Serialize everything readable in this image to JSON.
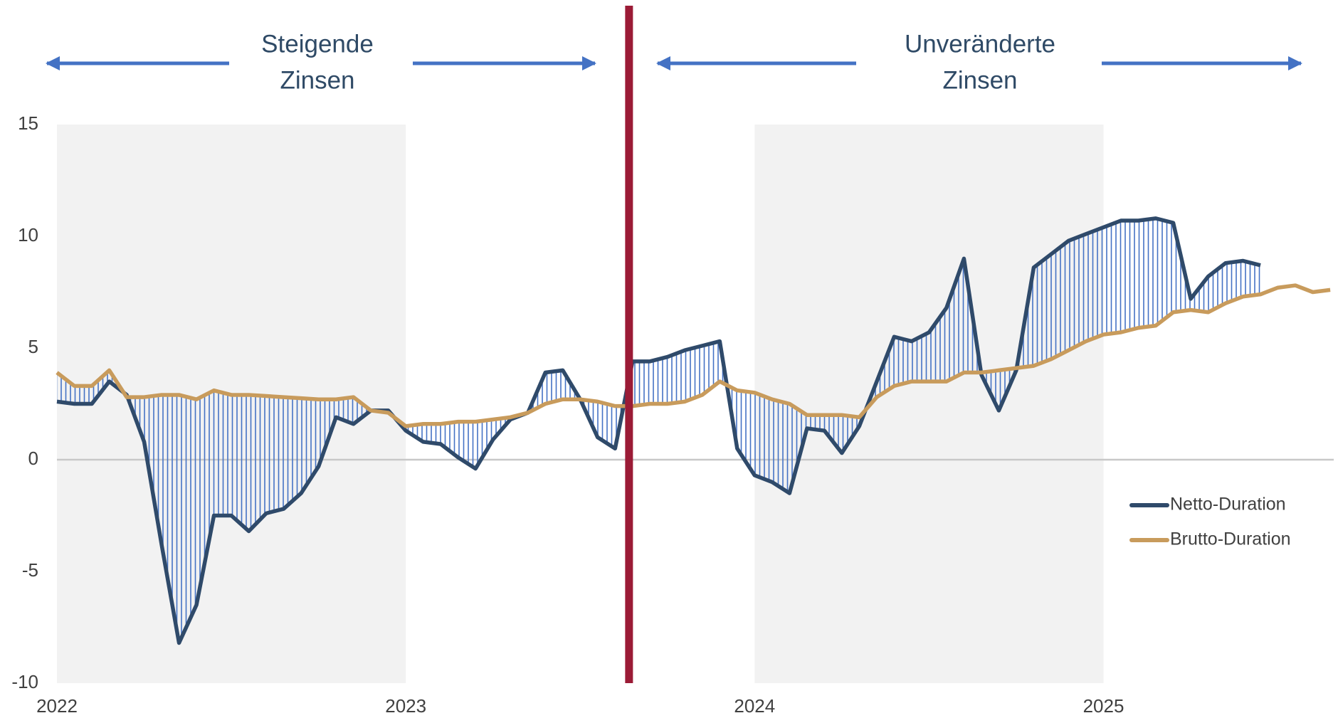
{
  "chart_data": {
    "type": "line",
    "annotations": [
      {
        "text": [
          "Steigende",
          "Zinsen"
        ]
      },
      {
        "text": [
          "Unveränderte",
          "Zinsen"
        ]
      }
    ],
    "x": [
      2022.0,
      2022.05,
      2022.1,
      2022.15,
      2022.2,
      2022.25,
      2022.3,
      2022.35,
      2022.4,
      2022.45,
      2022.5,
      2022.55,
      2022.6,
      2022.65,
      2022.7,
      2022.75,
      2022.8,
      2022.85,
      2022.9,
      2022.95,
      2023.0,
      2023.05,
      2023.1,
      2023.15,
      2023.2,
      2023.25,
      2023.3,
      2023.35,
      2023.4,
      2023.45,
      2023.5,
      2023.55,
      2023.6,
      2023.65,
      2023.7,
      2023.75,
      2023.8,
      2023.85,
      2023.9,
      2023.95,
      2024.0,
      2024.05,
      2024.1,
      2024.15,
      2024.2,
      2024.25,
      2024.3,
      2024.35,
      2024.4,
      2024.45,
      2024.5,
      2024.55,
      2024.6,
      2024.65,
      2024.7,
      2024.75,
      2024.8,
      2024.85,
      2024.9,
      2024.95,
      2025.0,
      2025.05,
      2025.1,
      2025.15,
      2025.2,
      2025.25,
      2025.3,
      2025.35,
      2025.4,
      2025.45,
      2025.5,
      2025.55,
      2025.6,
      2025.65
    ],
    "series": [
      {
        "name": "Netto-Duration",
        "color": "#2f4a6a",
        "values": [
          2.6,
          2.5,
          2.5,
          3.5,
          2.9,
          0.8,
          -3.8,
          -8.2,
          -6.5,
          -2.5,
          -2.5,
          -3.2,
          -2.4,
          -2.2,
          -1.5,
          -0.3,
          1.9,
          1.6,
          2.2,
          2.2,
          1.3,
          0.8,
          0.7,
          0.1,
          -0.4,
          0.9,
          1.8,
          2.1,
          3.9,
          4.0,
          2.7,
          1.0,
          0.5,
          4.4,
          4.4,
          4.6,
          4.9,
          5.1,
          5.3,
          0.5,
          -0.7,
          -1.0,
          -1.5,
          1.4,
          1.3,
          0.3,
          1.5,
          3.5,
          5.5,
          5.3,
          5.7,
          6.8,
          9.0,
          3.8,
          2.2,
          4.0,
          8.6,
          9.2,
          9.8,
          10.1,
          10.4,
          10.7,
          10.7,
          10.8,
          10.6,
          7.2,
          8.2,
          8.8,
          8.9,
          8.7,
          null,
          null,
          null,
          null
        ]
      },
      {
        "name": "Brutto-Duration",
        "color": "#c89b5c",
        "values": [
          3.9,
          3.3,
          3.3,
          4.0,
          2.8,
          2.8,
          2.9,
          2.9,
          2.7,
          3.1,
          2.9,
          2.9,
          2.85,
          2.8,
          2.75,
          2.7,
          2.7,
          2.8,
          2.2,
          2.1,
          1.5,
          1.6,
          1.6,
          1.7,
          1.7,
          1.8,
          1.9,
          2.1,
          2.5,
          2.7,
          2.7,
          2.6,
          2.4,
          2.4,
          2.5,
          2.5,
          2.6,
          2.9,
          3.5,
          3.1,
          3.0,
          2.7,
          2.5,
          2.0,
          2.0,
          2.0,
          1.9,
          2.8,
          3.3,
          3.5,
          3.5,
          3.5,
          3.9,
          3.9,
          4.0,
          4.1,
          4.2,
          4.5,
          4.9,
          5.3,
          5.6,
          5.7,
          5.9,
          6.0,
          6.6,
          6.7,
          6.6,
          7.0,
          7.3,
          7.4,
          7.7,
          7.8,
          7.5,
          7.6
        ]
      }
    ],
    "fill_between_color": "#4472c4",
    "shaded_spans": [
      [
        2022,
        2023
      ],
      [
        2024,
        2025
      ]
    ],
    "vline": {
      "x": 2023.64,
      "color": "#9b1b36"
    },
    "xlim": [
      2022,
      2025.66
    ],
    "xticks": [
      2022,
      2023,
      2024,
      2025
    ],
    "ylim": [
      -10,
      15
    ],
    "yticks": [
      -10,
      -5,
      0,
      5,
      10,
      15
    ],
    "legend": "right"
  }
}
